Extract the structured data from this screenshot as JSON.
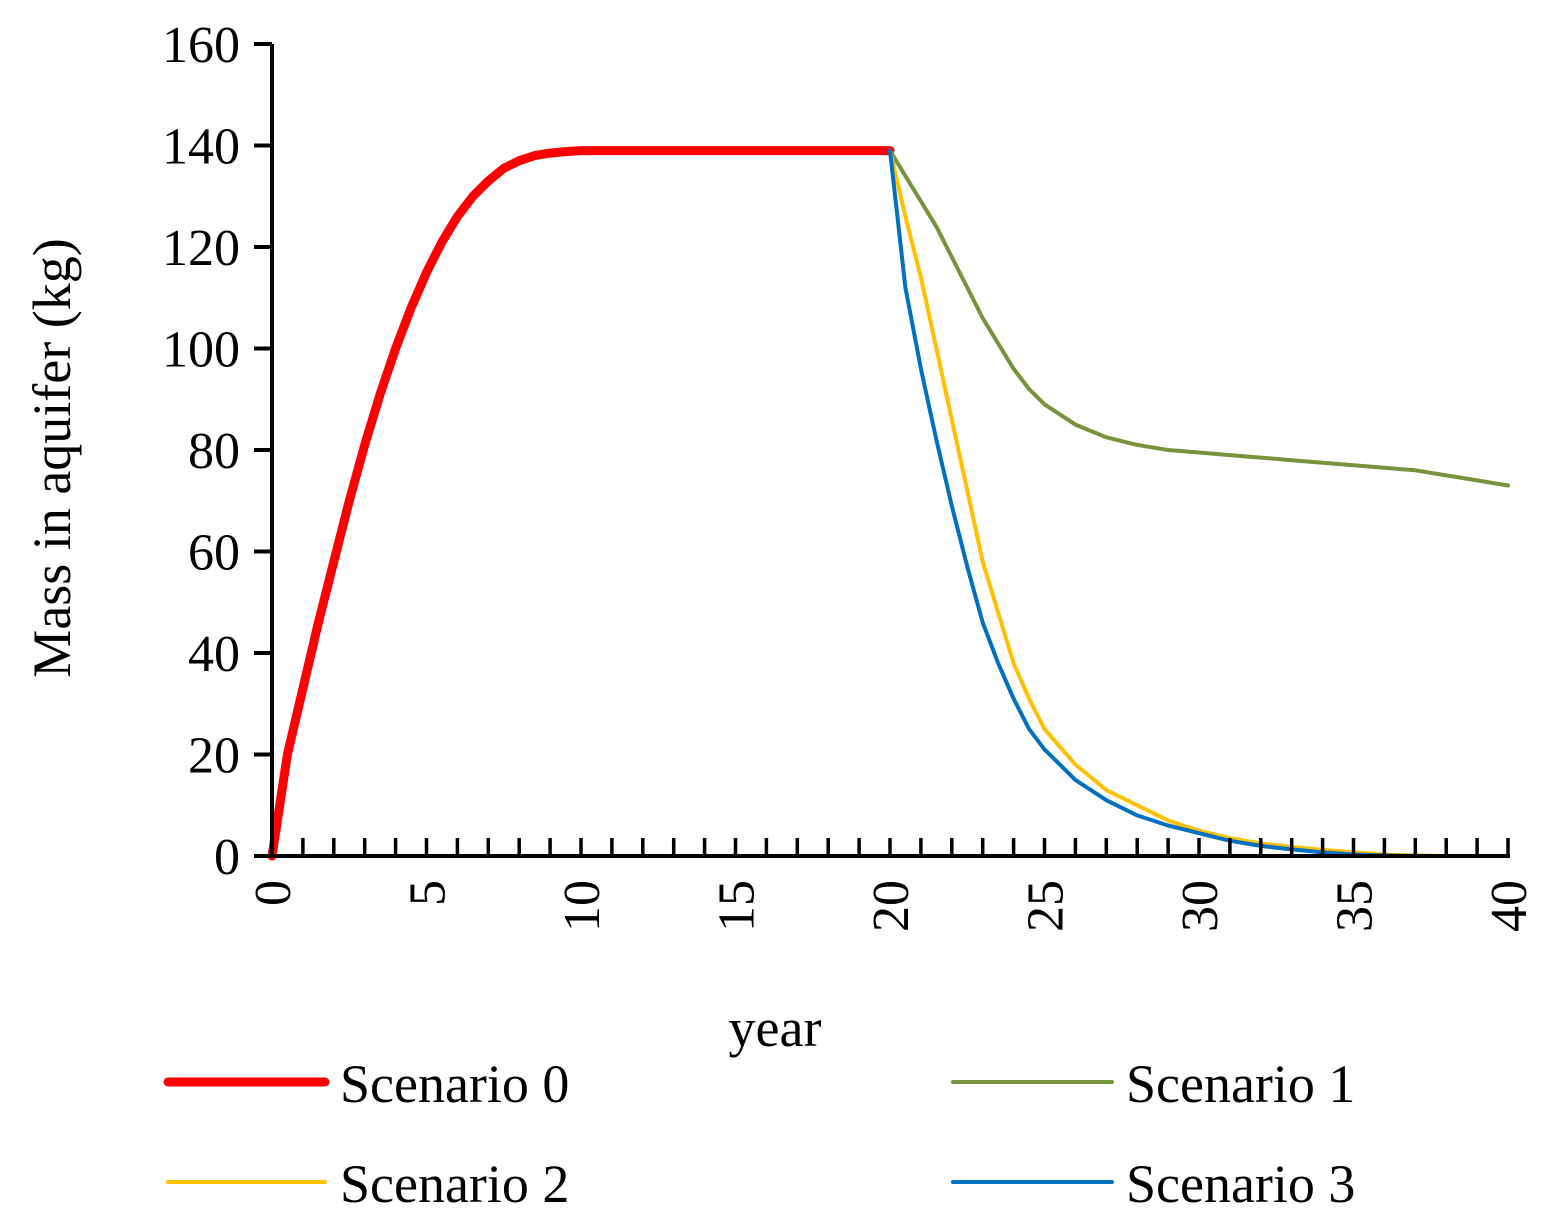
{
  "chart_data": {
    "type": "line",
    "title": "",
    "xlabel": "year",
    "ylabel": "Mass in aquifer (kg)",
    "xlim": [
      0,
      40
    ],
    "ylim": [
      0,
      160
    ],
    "x_major_ticks": [
      0,
      5,
      10,
      15,
      20,
      25,
      30,
      35,
      40
    ],
    "x_minor_step": 1,
    "y_ticks": [
      0,
      20,
      40,
      60,
      80,
      100,
      120,
      140,
      160
    ],
    "legend_position": "bottom",
    "series": [
      {
        "name": "Scenario 0",
        "color": "#ff0000",
        "x": [
          0,
          0.5,
          1,
          1.5,
          2,
          2.5,
          3,
          3.5,
          4,
          4.5,
          5,
          5.5,
          6,
          6.5,
          7,
          7.5,
          8,
          8.5,
          9,
          9.5,
          10,
          12,
          14,
          16,
          18,
          20
        ],
        "y": [
          0,
          20,
          33,
          46,
          58,
          70,
          81,
          91,
          100,
          108,
          115,
          121,
          126,
          130,
          133,
          135.5,
          137,
          138,
          138.5,
          138.8,
          139,
          139,
          139,
          139,
          139,
          139
        ]
      },
      {
        "name": "Scenario 1",
        "color": "#77933c",
        "x": [
          20,
          20.5,
          21,
          21.5,
          22,
          22.5,
          23,
          23.5,
          24,
          24.5,
          25,
          26,
          27,
          28,
          29,
          30,
          31,
          32,
          33,
          34,
          35,
          36,
          37,
          38,
          39,
          40
        ],
        "y": [
          139,
          134,
          129,
          124,
          118,
          112,
          106,
          101,
          96,
          92,
          89,
          85,
          82.5,
          81,
          80,
          79.5,
          79,
          78.5,
          78,
          77.5,
          77,
          76.5,
          76,
          75,
          74,
          73
        ]
      },
      {
        "name": "Scenario 2",
        "color": "#ffc000",
        "x": [
          20,
          20.5,
          21,
          21.5,
          22,
          22.5,
          23,
          23.5,
          24,
          24.5,
          25,
          26,
          27,
          28,
          29,
          30,
          31,
          32,
          33,
          34,
          35,
          36,
          37,
          38,
          39,
          40
        ],
        "y": [
          139,
          126,
          114,
          100,
          86,
          72,
          58,
          48,
          38,
          31,
          25,
          18,
          13,
          10,
          7,
          5,
          3.5,
          2.5,
          1.8,
          1.2,
          0.7,
          0.3,
          0.1,
          0,
          0,
          0
        ]
      },
      {
        "name": "Scenario 3",
        "color": "#0070c0",
        "x": [
          20,
          20.5,
          21,
          21.5,
          22,
          22.5,
          23,
          23.5,
          24,
          24.5,
          25,
          26,
          27,
          28,
          29,
          30,
          31,
          32,
          33,
          34,
          35,
          36,
          37,
          38,
          39,
          40
        ],
        "y": [
          139,
          112,
          96,
          82,
          69,
          57,
          46,
          38,
          31,
          25,
          21,
          15,
          11,
          8,
          6,
          4.5,
          3,
          2,
          1.3,
          0.7,
          0.3,
          0.1,
          0,
          0,
          0,
          0
        ]
      }
    ]
  }
}
